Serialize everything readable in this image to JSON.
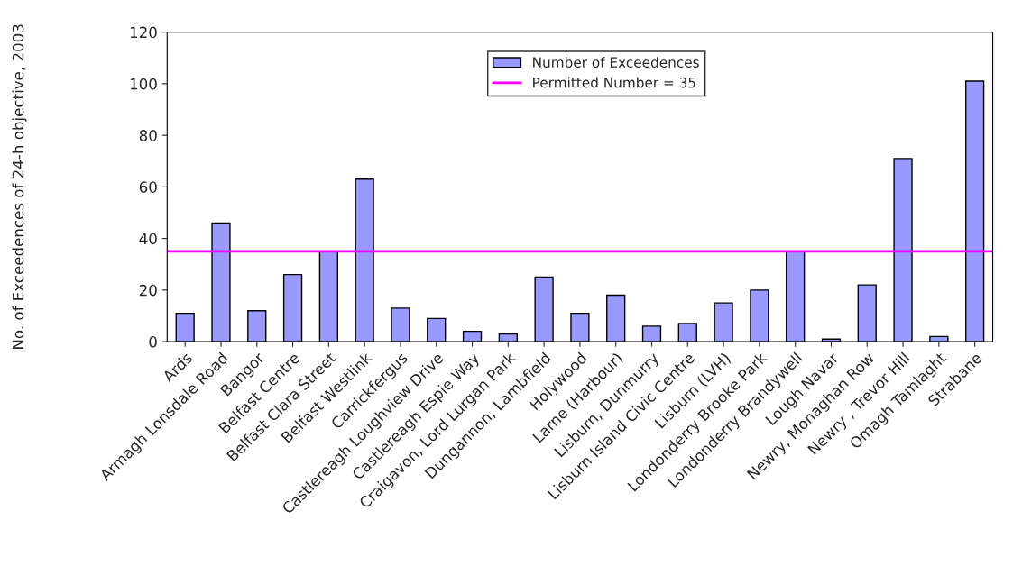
{
  "chart_data": {
    "type": "bar",
    "ylabel": "No. of Exceedences of 24-h objective, 2003",
    "categories": [
      "Ards",
      "Armagh Lonsdale Road",
      "Bangor",
      "Belfast Centre",
      "Belfast Clara Street",
      "Belfast Westlink",
      "Carrickfergus",
      "Castlereagh Loughview Drive",
      "Castlereagh Espie Way",
      "Craigavon, Lord Lurgan Park",
      "Dungannon, Lambfield",
      "Holywood",
      "Larne (Harbour)",
      "Lisburn, Dunmurry",
      "Lisburn Island Civic Centre",
      "Lisburn (LVH)",
      "Londonderry Brooke Park",
      "Londonderry Brandywell",
      "Lough Navar",
      "Newry, Monaghan Row",
      "Newry , Trevor Hill",
      "Omagh Tamlaght",
      "Strabane"
    ],
    "series": [
      {
        "name": "Number of Exceedences",
        "color": "#9999ff",
        "values": [
          11,
          46,
          12,
          26,
          35,
          63,
          13,
          9,
          4,
          3,
          25,
          11,
          18,
          6,
          7,
          15,
          20,
          35,
          1,
          22,
          71,
          2,
          101
        ]
      }
    ],
    "ref_lines": [
      {
        "axis": "y",
        "value": 35,
        "label": "Permitted Number = 35",
        "color": "#ff00ff"
      }
    ],
    "ylim": [
      0,
      120
    ],
    "yticks": [
      0,
      20,
      40,
      60,
      80,
      100,
      120
    ],
    "grid": false,
    "legend": "top"
  }
}
